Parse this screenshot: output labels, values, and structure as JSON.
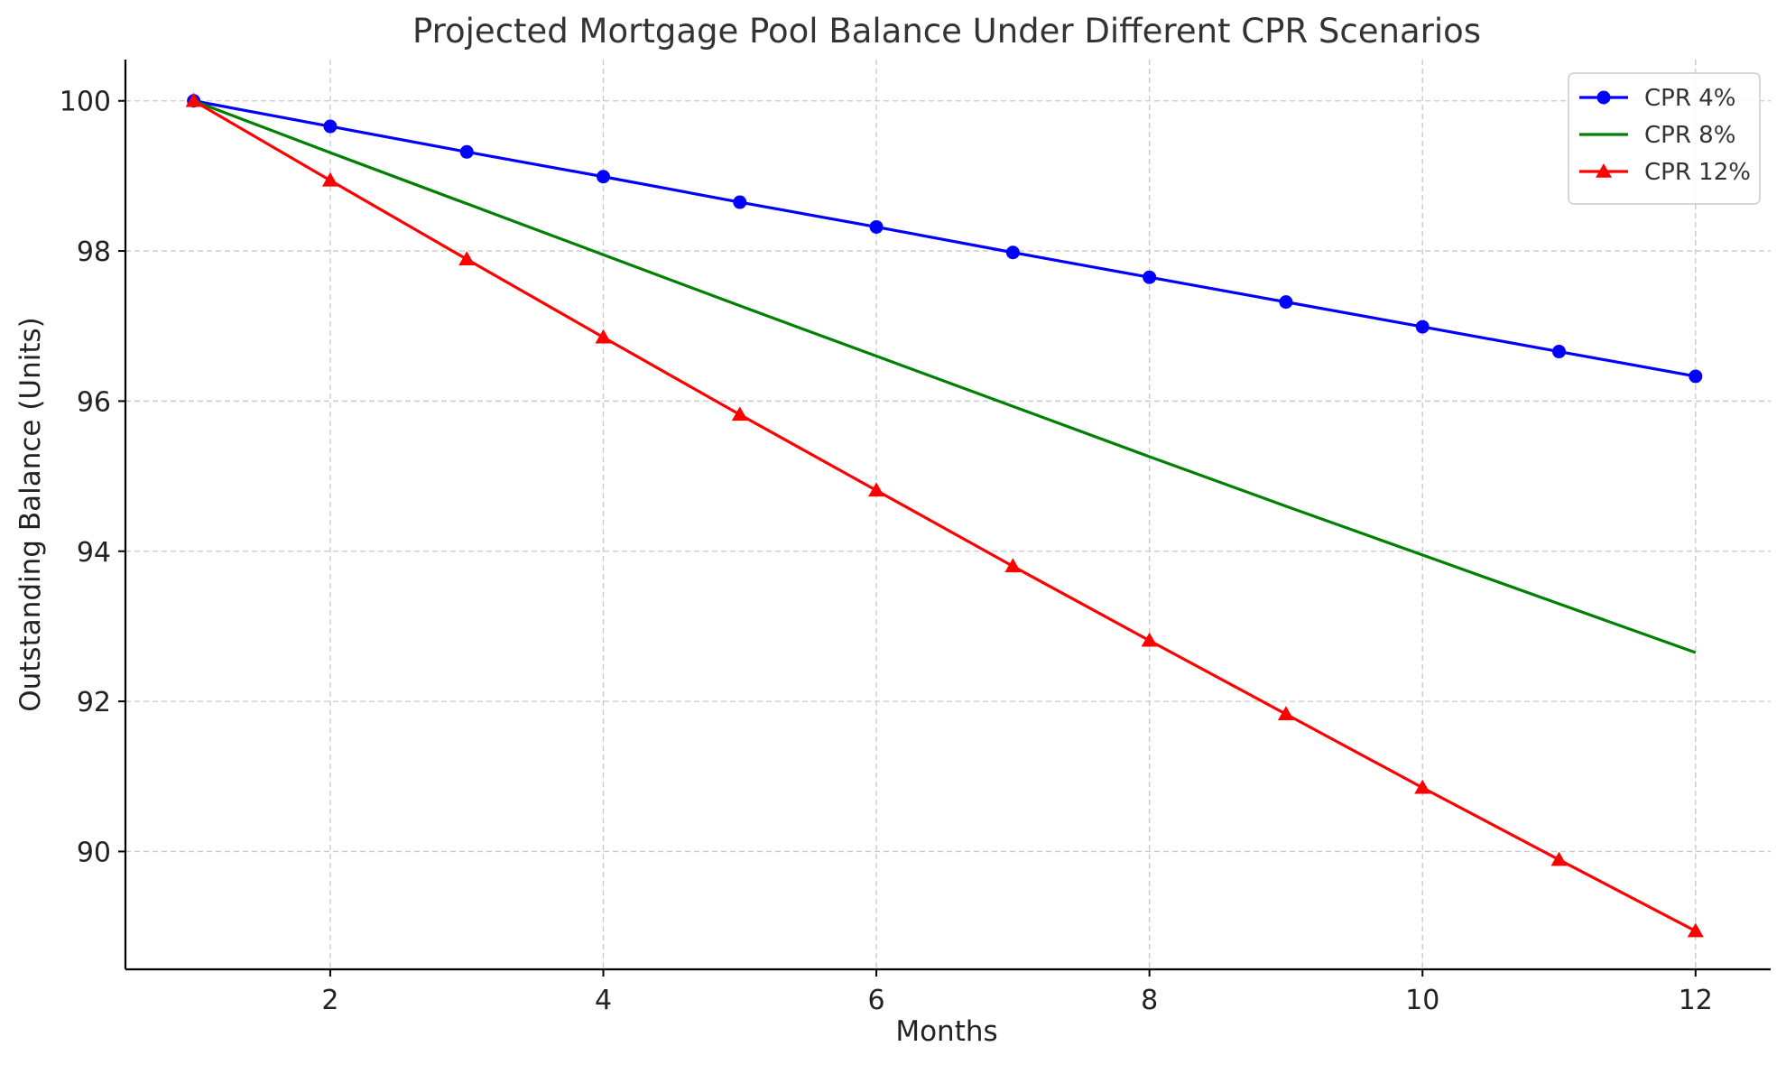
{
  "chart_data": {
    "type": "line",
    "title": "Projected Mortgage Pool Balance Under Different CPR Scenarios",
    "xlabel": "Months",
    "ylabel": "Outstanding Balance (Units)",
    "xlim": [
      0.5,
      12.55
    ],
    "ylim": [
      88.43,
      100.55
    ],
    "x_ticks": [
      2,
      4,
      6,
      8,
      10,
      12
    ],
    "y_ticks": [
      90,
      92,
      94,
      96,
      98,
      100
    ],
    "grid": true,
    "legend_position": "top-right",
    "x": [
      1,
      2,
      3,
      4,
      5,
      6,
      7,
      8,
      9,
      10,
      11,
      12
    ],
    "series": [
      {
        "name": "CPR 4%",
        "color": "#0000ff",
        "marker": "circle",
        "values": [
          100,
          99.66,
          99.32,
          98.99,
          98.65,
          98.32,
          97.98,
          97.65,
          97.32,
          96.99,
          96.66,
          96.33
        ]
      },
      {
        "name": "CPR 8%",
        "color": "#008000",
        "marker": "none",
        "values": [
          100,
          99.31,
          98.63,
          97.95,
          97.27,
          96.6,
          95.93,
          95.26,
          94.6,
          93.95,
          93.3,
          92.65
        ]
      },
      {
        "name": "CPR 12%",
        "color": "#ff0000",
        "marker": "triangle",
        "values": [
          100,
          98.94,
          97.89,
          96.85,
          95.82,
          94.81,
          93.8,
          92.81,
          91.83,
          90.85,
          89.89,
          88.94
        ]
      }
    ]
  }
}
